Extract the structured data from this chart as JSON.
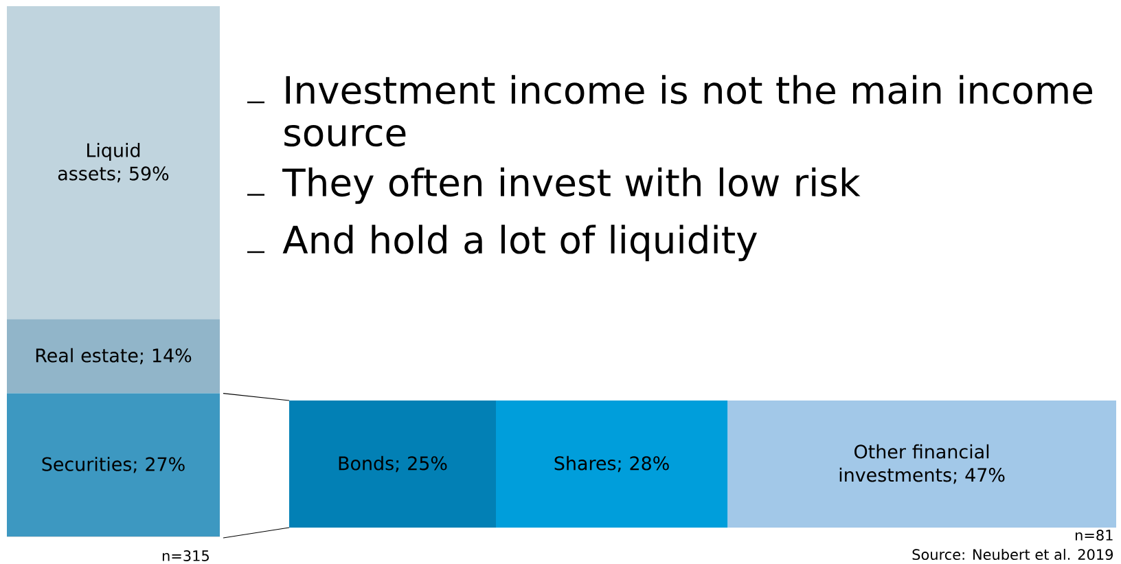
{
  "chart_data": [
    {
      "type": "bar",
      "stacked": true,
      "categories": [
        null
      ],
      "tick_labels": false,
      "series": [
        {
          "color": "#3d98c1",
          "values": [
            27
          ],
          "value_labels": [
            "Securities; 27%"
          ]
        },
        {
          "color": "#91b5c9",
          "values": [
            14
          ],
          "value_labels": [
            "Real estate; 14%"
          ]
        },
        {
          "color": "#c0d4de",
          "values": [
            59
          ],
          "value_labels": [
            "Liquid assets; 59%"
          ]
        }
      ],
      "annotations": [
        "n=315"
      ]
    },
    {
      "type": "bar",
      "stacked": true,
      "orientation": "horizontal",
      "categories": [
        null
      ],
      "tick_labels": false,
      "series": [
        {
          "color": "#0280b5",
          "values": [
            25
          ],
          "value_labels": [
            "Bonds; 25%"
          ]
        },
        {
          "color": "#009edb",
          "values": [
            28
          ],
          "value_labels": [
            "Shares; 28%"
          ]
        },
        {
          "color": "#a2c8e8",
          "values": [
            47
          ],
          "value_labels": [
            "Other financial investments; 47%"
          ]
        }
      ],
      "annotations": [
        "n=81",
        "Source: Neubert et al. 2019"
      ]
    },
    {
      "type": "other",
      "annotations": [
        "Investment income is not the main income source",
        "They often invest with low risk",
        "And hold a lot of liquidity"
      ]
    }
  ]
}
